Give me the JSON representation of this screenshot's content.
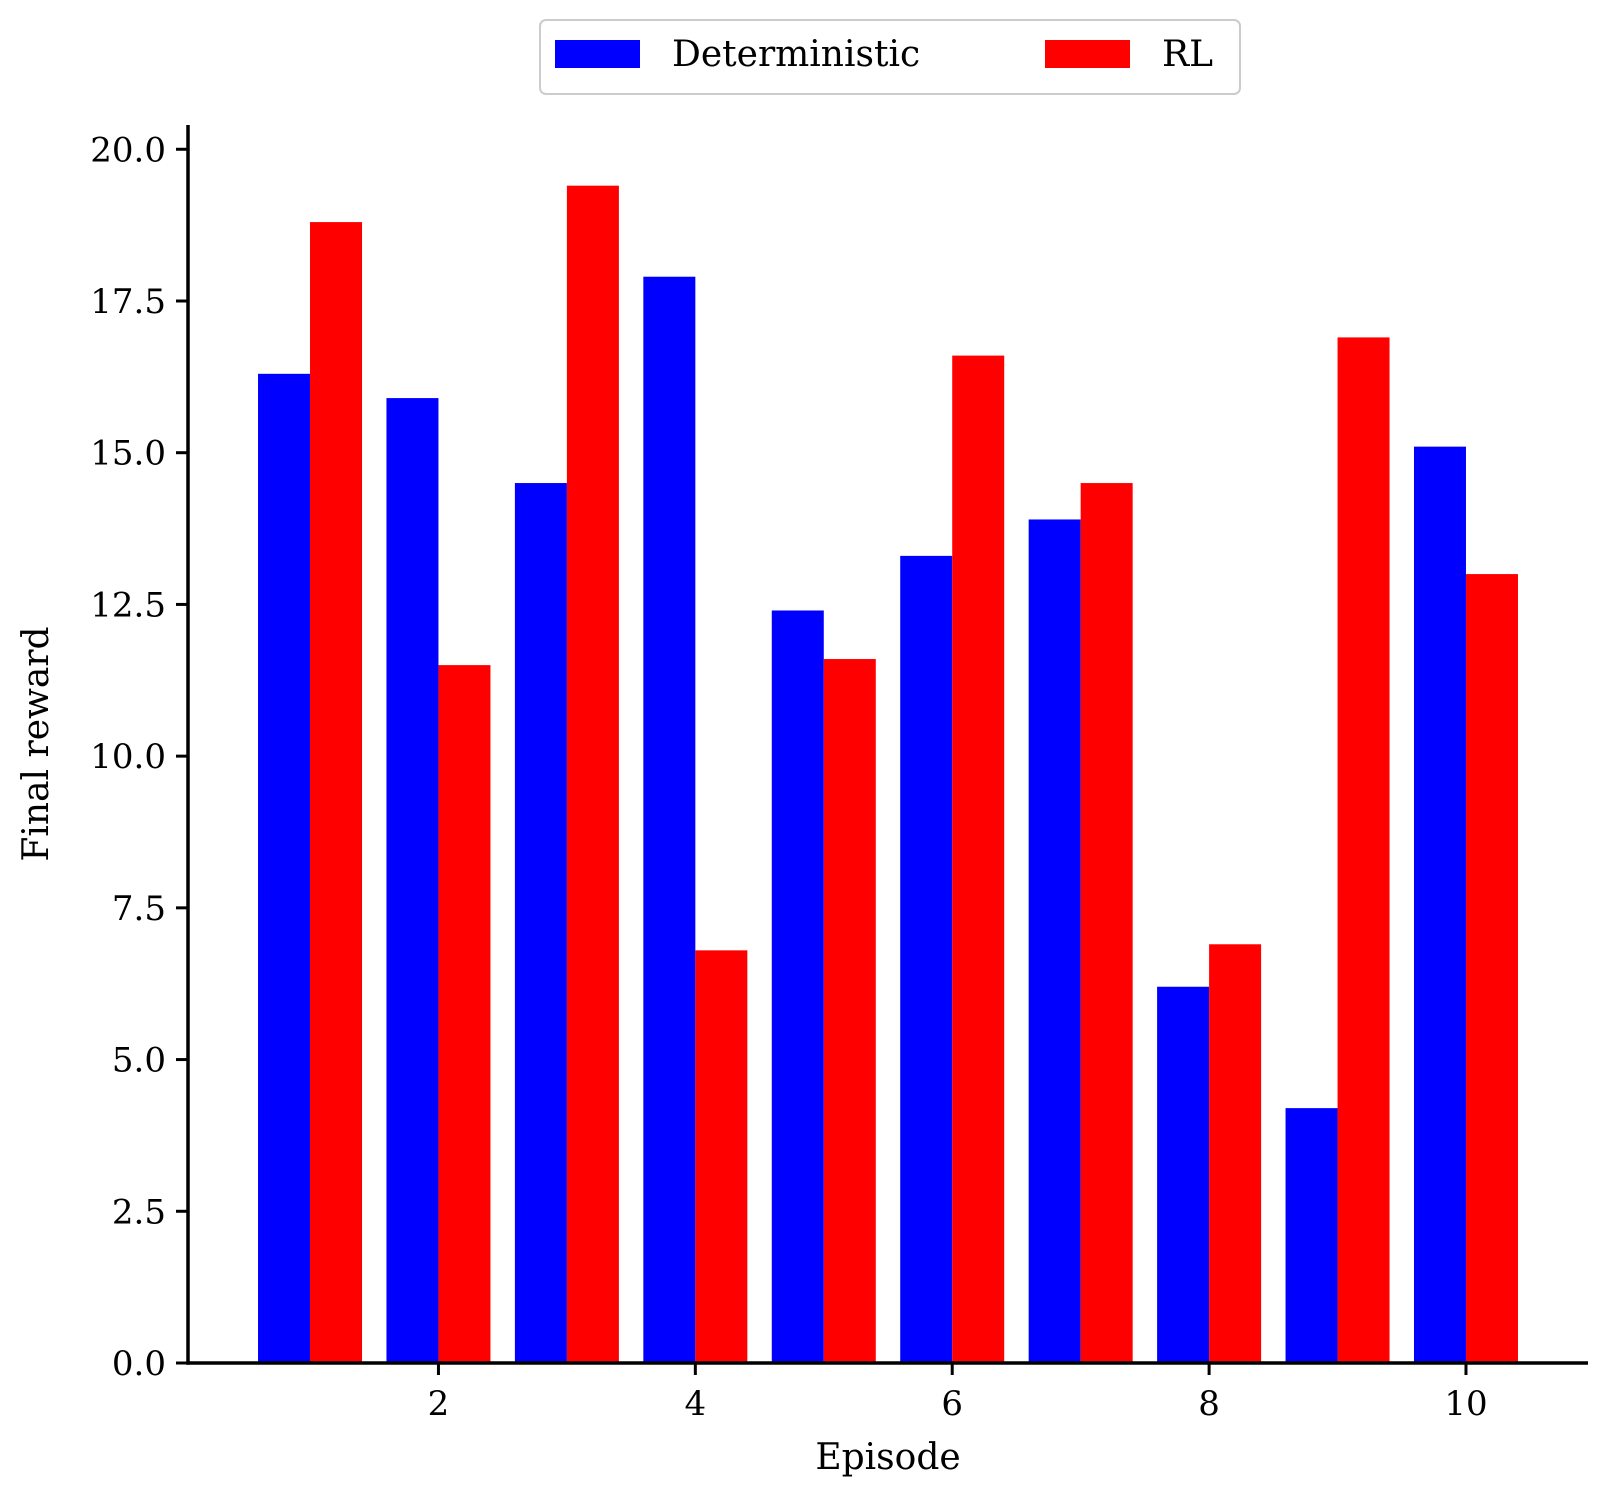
{
  "chart_data": {
    "type": "bar",
    "xlabel": "Episode",
    "ylabel": "Final reward",
    "x": [
      1,
      2,
      3,
      4,
      5,
      6,
      7,
      8,
      9,
      10
    ],
    "xticks": [
      2,
      4,
      6,
      8,
      10
    ],
    "xtick_labels": [
      "2",
      "4",
      "6",
      "8",
      "10"
    ],
    "xlim": [
      0.05,
      10.95
    ],
    "ylim": [
      0,
      20.4
    ],
    "yticks": [
      0,
      2.5,
      5,
      7.5,
      10,
      12.5,
      15,
      17.5,
      20
    ],
    "ytick_labels": [
      "0.0",
      "2.5",
      "5.0",
      "7.5",
      "10.0",
      "12.5",
      "15.0",
      "17.5",
      "20.0"
    ],
    "grid": false,
    "legend": {
      "placement": "top-center, outside plot, 2 columns"
    },
    "series": [
      {
        "name": "Deterministic",
        "color": "#0000ff",
        "values": [
          16.3,
          15.9,
          14.5,
          17.9,
          12.4,
          13.3,
          13.9,
          6.2,
          4.2,
          15.1
        ]
      },
      {
        "name": "RL",
        "color": "#ff0000",
        "values": [
          18.8,
          11.5,
          19.4,
          6.8,
          11.6,
          16.6,
          14.5,
          6.9,
          16.9,
          13.0
        ]
      }
    ]
  }
}
